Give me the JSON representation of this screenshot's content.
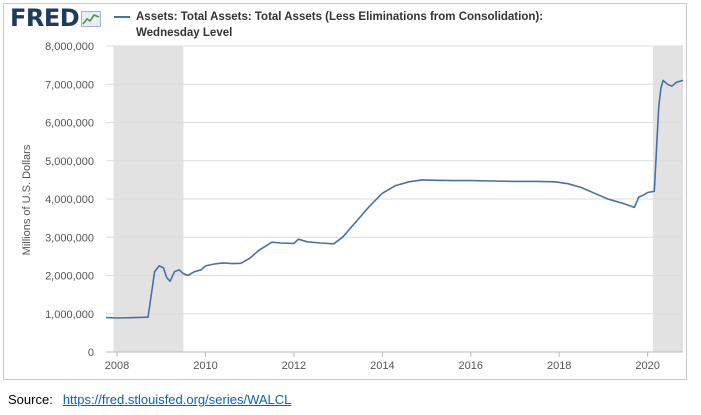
{
  "logo": {
    "text": "FRED"
  },
  "source": {
    "label": "Source:",
    "url": "https://fred.stlouisfed.org/series/WALCL"
  },
  "colors": {
    "series": "#4572a7",
    "recession": "#e2e2e2",
    "grid": "#dcdcdc",
    "logo": "#1f3a5f"
  },
  "chart_data": {
    "type": "line",
    "title_lines": [
      "Assets: Total Assets: Total Assets (Less Eliminations from Consolidation):",
      "Wednesday Level"
    ],
    "ylabel": "Millions of U.S. Dollars",
    "xlabel": "",
    "ylim": [
      0,
      8000000
    ],
    "xlim": [
      2007.75,
      2020.8
    ],
    "yticks": [
      {
        "value": 0,
        "label": "0"
      },
      {
        "value": 1000000,
        "label": "1,000,000"
      },
      {
        "value": 2000000,
        "label": "2,000,000"
      },
      {
        "value": 3000000,
        "label": "3,000,000"
      },
      {
        "value": 4000000,
        "label": "4,000,000"
      },
      {
        "value": 5000000,
        "label": "5,000,000"
      },
      {
        "value": 6000000,
        "label": "6,000,000"
      },
      {
        "value": 7000000,
        "label": "7,000,000"
      },
      {
        "value": 8000000,
        "label": "8,000,000"
      }
    ],
    "xticks": [
      {
        "value": 2008,
        "label": "2008"
      },
      {
        "value": 2010,
        "label": "2010"
      },
      {
        "value": 2012,
        "label": "2012"
      },
      {
        "value": 2014,
        "label": "2014"
      },
      {
        "value": 2016,
        "label": "2016"
      },
      {
        "value": 2018,
        "label": "2018"
      },
      {
        "value": 2020,
        "label": "2020"
      }
    ],
    "grid": true,
    "recessions": [
      {
        "start": 2007.92,
        "end": 2009.5
      },
      {
        "start": 2020.12,
        "end": 2020.8
      }
    ],
    "series": [
      {
        "name": "Assets: Total Assets: Total Assets (Less Eliminations from Consolidation): Wednesday Level",
        "x": [
          2007.75,
          2008.0,
          2008.4,
          2008.7,
          2008.75,
          2008.85,
          2008.95,
          2009.05,
          2009.12,
          2009.2,
          2009.3,
          2009.4,
          2009.5,
          2009.6,
          2009.75,
          2009.9,
          2010.0,
          2010.2,
          2010.4,
          2010.6,
          2010.8,
          2011.0,
          2011.2,
          2011.5,
          2011.7,
          2012.0,
          2012.1,
          2012.3,
          2012.6,
          2012.9,
          2013.1,
          2013.4,
          2013.7,
          2014.0,
          2014.3,
          2014.6,
          2014.9,
          2015.2,
          2015.6,
          2016.0,
          2016.5,
          2017.0,
          2017.5,
          2017.9,
          2018.2,
          2018.5,
          2018.8,
          2019.1,
          2019.4,
          2019.7,
          2019.8,
          2019.9,
          2020.0,
          2020.15,
          2020.2,
          2020.25,
          2020.3,
          2020.35,
          2020.45,
          2020.55,
          2020.65,
          2020.8
        ],
        "values": [
          900000,
          890000,
          900000,
          910000,
          1300000,
          2100000,
          2250000,
          2200000,
          1950000,
          1850000,
          2100000,
          2150000,
          2050000,
          2000000,
          2100000,
          2150000,
          2250000,
          2300000,
          2330000,
          2310000,
          2320000,
          2450000,
          2650000,
          2870000,
          2850000,
          2840000,
          2950000,
          2880000,
          2850000,
          2830000,
          3000000,
          3400000,
          3800000,
          4150000,
          4350000,
          4450000,
          4500000,
          4490000,
          4480000,
          4480000,
          4470000,
          4460000,
          4460000,
          4450000,
          4400000,
          4300000,
          4150000,
          4000000,
          3900000,
          3780000,
          4050000,
          4100000,
          4170000,
          4200000,
          5300000,
          6400000,
          6900000,
          7100000,
          7000000,
          6950000,
          7050000,
          7100000
        ]
      }
    ]
  }
}
